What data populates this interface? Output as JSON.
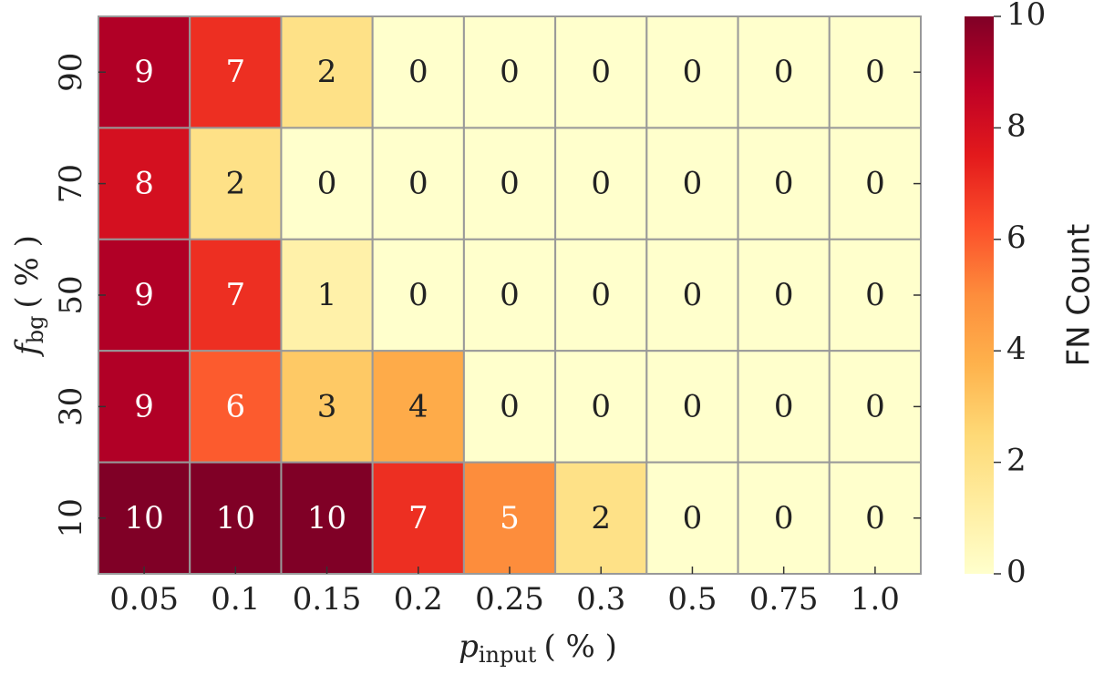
{
  "chart_data": {
    "type": "heatmap",
    "x_categories": [
      "0.05",
      "0.1",
      "0.15",
      "0.2",
      "0.25",
      "0.3",
      "0.5",
      "0.75",
      "1.0"
    ],
    "y_categories": [
      "90",
      "70",
      "50",
      "30",
      "10"
    ],
    "values": [
      [
        9,
        7,
        2,
        0,
        0,
        0,
        0,
        0,
        0
      ],
      [
        8,
        2,
        0,
        0,
        0,
        0,
        0,
        0,
        0
      ],
      [
        9,
        7,
        1,
        0,
        0,
        0,
        0,
        0,
        0
      ],
      [
        9,
        6,
        3,
        4,
        0,
        0,
        0,
        0,
        0
      ],
      [
        10,
        10,
        10,
        7,
        5,
        2,
        0,
        0,
        0
      ]
    ],
    "xlabel": {
      "main": "p",
      "sub": "input",
      "rest": "( % )"
    },
    "ylabel": {
      "main": "f",
      "sub": "bg",
      "rest": "( % )"
    },
    "colorbar_label": "FN Count",
    "clim": [
      0,
      10
    ],
    "cticks": [
      0,
      2,
      4,
      6,
      8,
      10
    ],
    "colormap": [
      "#ffffcc",
      "#ffeda0",
      "#fed976",
      "#feb24c",
      "#fd8d3c",
      "#fc4e2a",
      "#e31a1c",
      "#bd0026",
      "#800026"
    ]
  }
}
